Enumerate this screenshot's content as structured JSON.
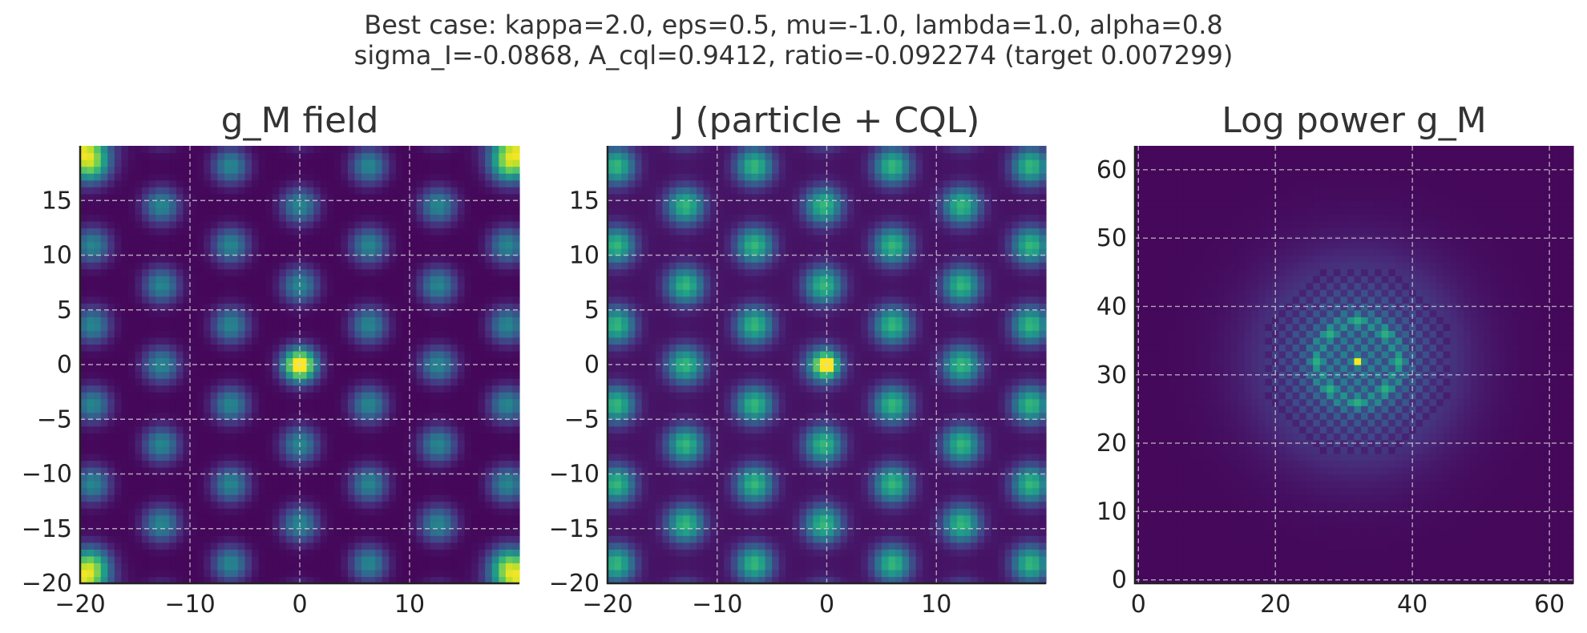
{
  "suptitle": {
    "line1": "Best case: kappa=2.0, eps=0.5, mu=-1.0, lambda=1.0, alpha=0.8",
    "line2": "sigma_I=-0.0868, A_cql=0.9412, ratio=-0.092274 (target 0.007299)"
  },
  "colors": {
    "viridis": [
      "#440154",
      "#482878",
      "#3e4a89",
      "#31688e",
      "#26828e",
      "#1f9e89",
      "#35b779",
      "#6ece58",
      "#b5de2b",
      "#fde725"
    ],
    "grid": "#d8d8d8",
    "axis": "#222222",
    "text": "#333333"
  },
  "chart_data": [
    {
      "type": "heatmap",
      "title": "g_M field",
      "xlim": [
        -20,
        19
      ],
      "ylim": [
        -20,
        19
      ],
      "xticks": [
        -20,
        -10,
        0,
        10
      ],
      "yticks": [
        -20,
        -15,
        -10,
        -5,
        0,
        5,
        10,
        15
      ],
      "xtick_labels": [
        "−20",
        "−10",
        "0",
        "10"
      ],
      "ytick_labels": [
        "−20",
        "−15",
        "−10",
        "−5",
        "0",
        "5",
        "10",
        "15"
      ],
      "grid": true,
      "colormap": "viridis",
      "value_range": [
        0,
        1
      ],
      "description_values": {
        "background_level": 0.02,
        "lattice_blob_level": 0.28,
        "lattice_period": 6.3,
        "central_peak": {
          "x": 0,
          "y": 0,
          "value": 0.75
        },
        "corner_peaks": {
          "value": 1.0
        }
      }
    },
    {
      "type": "heatmap",
      "title": "J (particle + CQL)",
      "xlim": [
        -20,
        19
      ],
      "ylim": [
        -20,
        19
      ],
      "xticks": [
        -20,
        -10,
        0,
        10
      ],
      "yticks": [
        -20,
        -15,
        -10,
        -5,
        0,
        5,
        10,
        15
      ],
      "xtick_labels": [
        "−20",
        "−10",
        "0",
        "10"
      ],
      "ytick_labels": [
        "−20",
        "−15",
        "−10",
        "−5",
        "0",
        "5",
        "10",
        "15"
      ],
      "grid": true,
      "colormap": "viridis",
      "value_range": [
        0,
        1
      ],
      "description_values": {
        "background_level": 0.05,
        "lattice_blob_level": 0.38,
        "lattice_period": 6.3,
        "central_peak": {
          "x": 0,
          "y": 0,
          "value": 1.0
        }
      }
    },
    {
      "type": "heatmap",
      "title": "Log power g_M",
      "xlim": [
        0,
        63
      ],
      "ylim": [
        0,
        63
      ],
      "xticks": [
        0,
        20,
        40,
        60
      ],
      "yticks": [
        0,
        10,
        20,
        30,
        40,
        50,
        60
      ],
      "xtick_labels": [
        "0",
        "20",
        "40",
        "60"
      ],
      "ytick_labels": [
        "0",
        "10",
        "20",
        "30",
        "40",
        "50",
        "60"
      ],
      "grid": true,
      "colormap": "viridis",
      "value_range": [
        0,
        1
      ],
      "description_values": {
        "center": {
          "x": 32,
          "y": 32,
          "value": 1.0
        },
        "ring_peak_radius": 6,
        "ring_value": 0.62,
        "halo_sigma": 9
      }
    }
  ]
}
